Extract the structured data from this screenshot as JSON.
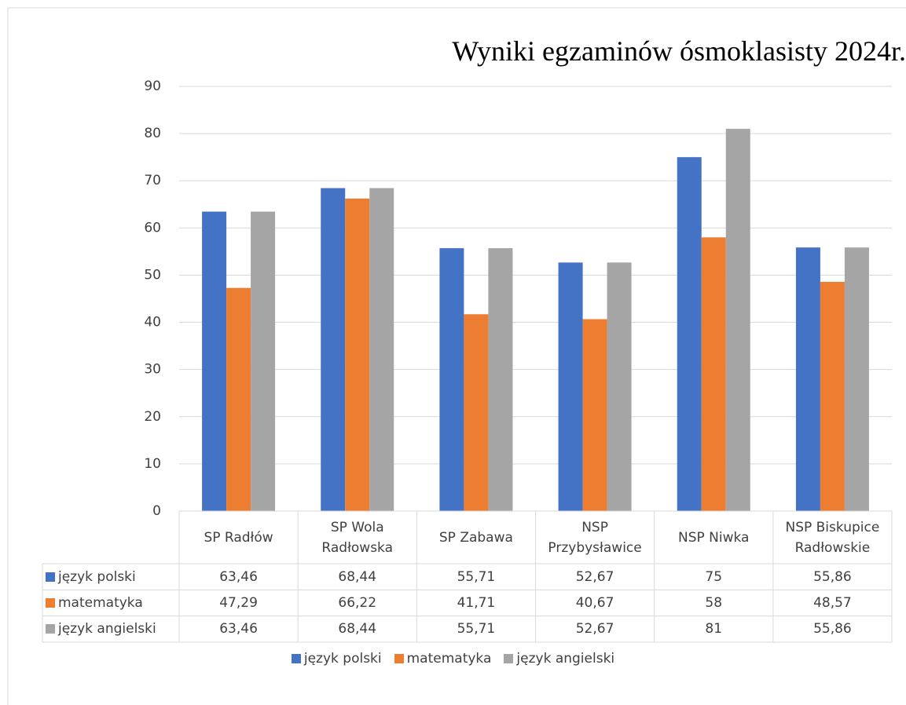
{
  "chart_data": {
    "type": "bar",
    "title": "Wyniki egzaminów ósmoklasisty 2024r.",
    "categories": [
      "SP Radłów",
      "SP Wola Radłowska",
      "SP Zabawa",
      "NSP Przybysławice",
      "NSP Niwka",
      "NSP Biskupice Radłowskie"
    ],
    "series": [
      {
        "name": "język polski",
        "color": "#4472c4",
        "values": [
          63.46,
          68.44,
          55.71,
          52.67,
          75,
          55.86
        ],
        "value_labels": [
          "63,46",
          "68,44",
          "55,71",
          "52,67",
          "75",
          "55,86"
        ]
      },
      {
        "name": "matematyka",
        "color": "#ed7d31",
        "values": [
          47.29,
          66.22,
          41.71,
          40.67,
          58,
          48.57
        ],
        "value_labels": [
          "47,29",
          "66,22",
          "41,71",
          "40,67",
          "58",
          "48,57"
        ]
      },
      {
        "name": "język angielski",
        "color": "#a5a5a5",
        "values": [
          63.46,
          68.44,
          55.71,
          52.67,
          81,
          55.86
        ],
        "value_labels": [
          "63,46",
          "68,44",
          "55,71",
          "52,67",
          "81",
          "55,86"
        ]
      }
    ],
    "ylim": [
      0,
      90
    ],
    "yticks": [
      0,
      10,
      20,
      30,
      40,
      50,
      60,
      70,
      80,
      90
    ],
    "grid": true,
    "legend": "bottom",
    "data_table": true
  }
}
